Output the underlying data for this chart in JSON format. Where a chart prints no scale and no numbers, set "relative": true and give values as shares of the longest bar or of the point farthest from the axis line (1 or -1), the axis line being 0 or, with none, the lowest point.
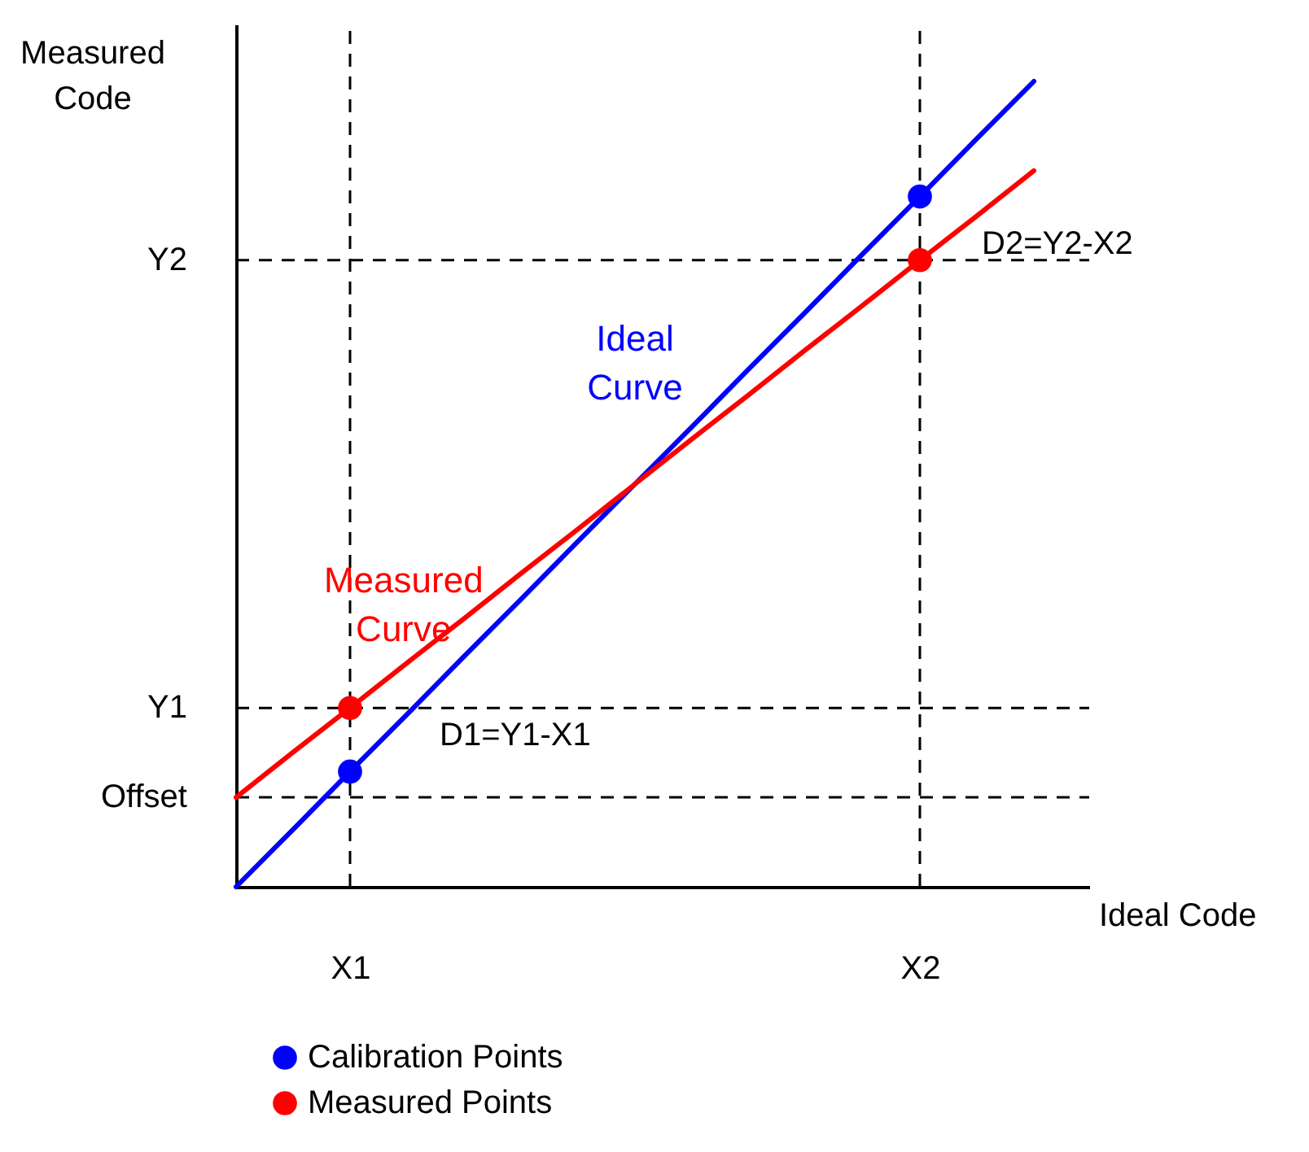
{
  "chart_data": {
    "type": "line",
    "relative": true,
    "xlabel": "Ideal Code",
    "ylabel": "Measured Code",
    "legend": "bottom",
    "line_style": "solid",
    "categories": [
      null,
      null,
      "X1",
      null,
      null,
      null,
      null,
      null,
      null,
      null,
      null,
      null,
      "X2",
      null,
      null
    ],
    "series": [
      {
        "name": "Ideal Curve",
        "color": "#0000ff",
        "values": [
          0,
          0.071,
          0.143,
          0.214,
          0.286,
          0.357,
          0.429,
          0.5,
          0.571,
          0.643,
          0.714,
          0.786,
          0.857,
          0.929,
          1
        ]
      },
      {
        "name": "Measured Curve",
        "color": "#ff0000",
        "values": [
          0.111,
          0.167,
          0.222,
          0.278,
          0.333,
          0.389,
          0.444,
          0.5,
          0.556,
          0.611,
          0.667,
          0.722,
          0.778,
          0.833,
          0.889
        ]
      },
      {
        "name": "Calibration Points",
        "type": "scatter",
        "color": "#0000ff",
        "values": [
          null,
          null,
          0.143,
          null,
          null,
          null,
          null,
          null,
          null,
          null,
          null,
          null,
          0.857,
          null,
          null
        ]
      },
      {
        "name": "Measured Points",
        "type": "scatter",
        "color": "#ff0000",
        "values": [
          null,
          null,
          0.222,
          null,
          null,
          null,
          null,
          null,
          null,
          null,
          null,
          null,
          0.778,
          null,
          null
        ]
      }
    ],
    "ref_lines": [
      {
        "axis": "x",
        "value": "X1",
        "line_style": "dashed"
      },
      {
        "axis": "x",
        "value": "X2",
        "line_style": "dashed"
      },
      {
        "axis": "y",
        "value": 0.222,
        "label": "Y1",
        "line_style": "dashed"
      },
      {
        "axis": "y",
        "value": 0.778,
        "label": "Y2",
        "line_style": "dashed"
      },
      {
        "axis": "y",
        "value": 0.111,
        "label": "Offset",
        "line_style": "dashed"
      }
    ],
    "annotations": [
      "D1=Y1-X1",
      "D2=Y2-X2"
    ]
  }
}
